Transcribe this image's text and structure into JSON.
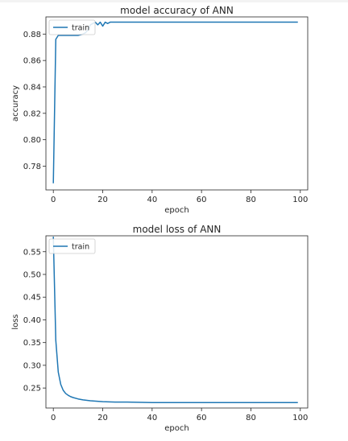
{
  "chart_data": [
    {
      "type": "line",
      "title": "model accuracy of ANN",
      "xlabel": "epoch",
      "ylabel": "accuracy",
      "xlim": [
        -3,
        103
      ],
      "ylim": [
        0.762,
        0.893
      ],
      "xticks": [
        0,
        20,
        40,
        60,
        80,
        100
      ],
      "yticks": [
        0.78,
        0.8,
        0.82,
        0.84,
        0.86,
        0.88
      ],
      "ytick_labels": [
        "0.78",
        "0.80",
        "0.82",
        "0.84",
        "0.86",
        "0.88"
      ],
      "legend_position": "top-left",
      "series": [
        {
          "name": "train",
          "color": "#1f77b4",
          "x": [
            0,
            1,
            2,
            3,
            4,
            5,
            6,
            8,
            10,
            12,
            13,
            14,
            15,
            16,
            17,
            18,
            19,
            20,
            21,
            22,
            23,
            25,
            30,
            40,
            50,
            60,
            70,
            80,
            90,
            99
          ],
          "y": [
            0.767,
            0.876,
            0.879,
            0.879,
            0.879,
            0.879,
            0.879,
            0.879,
            0.879,
            0.88,
            0.881,
            0.883,
            0.887,
            0.888,
            0.889,
            0.887,
            0.889,
            0.886,
            0.889,
            0.888,
            0.889,
            0.889,
            0.889,
            0.889,
            0.889,
            0.889,
            0.889,
            0.889,
            0.889,
            0.889
          ]
        }
      ]
    },
    {
      "type": "line",
      "title": "model loss of ANN",
      "xlabel": "epoch",
      "ylabel": "loss",
      "xlim": [
        -3,
        103
      ],
      "ylim": [
        0.206,
        0.585
      ],
      "xticks": [
        0,
        20,
        40,
        60,
        80,
        100
      ],
      "yticks": [
        0.25,
        0.3,
        0.35,
        0.4,
        0.45,
        0.5,
        0.55
      ],
      "ytick_labels": [
        "0.25",
        "0.30",
        "0.35",
        "0.40",
        "0.45",
        "0.50",
        "0.55"
      ],
      "legend_position": "top-left",
      "series": [
        {
          "name": "train",
          "color": "#1f77b4",
          "x": [
            0,
            1,
            2,
            3,
            4,
            5,
            6,
            7,
            8,
            10,
            12,
            15,
            20,
            25,
            30,
            40,
            50,
            60,
            70,
            80,
            90,
            99
          ],
          "y": [
            0.583,
            0.355,
            0.285,
            0.258,
            0.245,
            0.238,
            0.234,
            0.231,
            0.229,
            0.226,
            0.224,
            0.222,
            0.22,
            0.219,
            0.219,
            0.218,
            0.218,
            0.218,
            0.218,
            0.218,
            0.218,
            0.218
          ]
        }
      ]
    }
  ]
}
